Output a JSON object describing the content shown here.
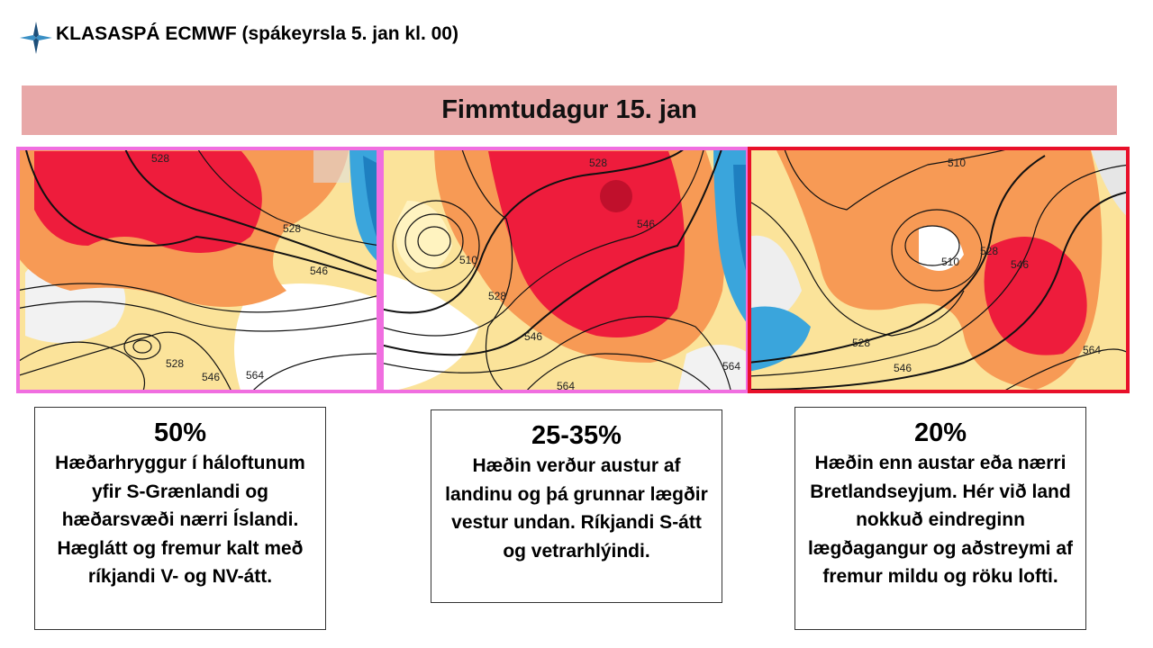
{
  "header": {
    "title": "KLASASPÁ ECMWF (spákeyrsla 5. jan kl. 00)",
    "banner": "Fimmtudagur 15. jan"
  },
  "maps": [
    {
      "labels": [
        "528",
        "528",
        "546",
        "528",
        "546",
        "564"
      ]
    },
    {
      "labels": [
        "528",
        "546",
        "510",
        "528",
        "546",
        "564",
        "564"
      ]
    },
    {
      "labels": [
        "510",
        "528",
        "510",
        "546",
        "528",
        "546",
        "564"
      ]
    }
  ],
  "scenarios": [
    {
      "percent": "50%",
      "text": "Hæðarhryggur í háloftunum yfir S-Grænlandi og hæðarsvæði nærri Íslandi.  Hæglátt og fremur kalt með ríkjandi V- og NV-átt."
    },
    {
      "percent": "25-35%",
      "text": "Hæðin verður austur af landinu og þá grunnar lægðir vestur undan. Ríkjandi S-átt og vetrarhlýindi."
    },
    {
      "percent": "20%",
      "text": "Hæðin enn austar eða nærri Bretlandseyjum.  Hér við land nokkuð eindreginn lægðagangur og aðstreymi af fremur mildu og röku lofti."
    }
  ]
}
